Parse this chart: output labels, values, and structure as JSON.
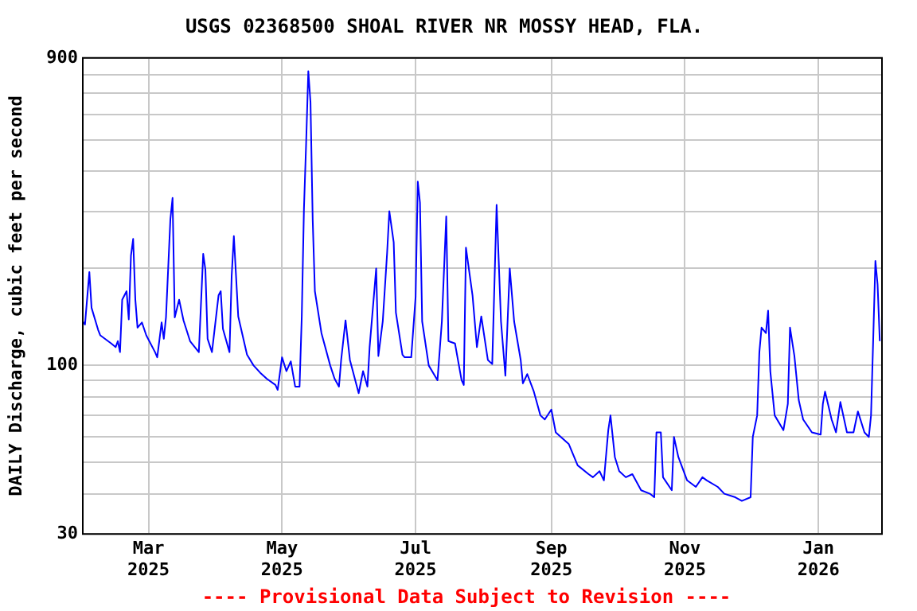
{
  "chart_data": {
    "type": "line",
    "title": "USGS 02368500 SHOAL RIVER NR MOSSY HEAD, FLA.",
    "ylabel": "DAILY Discharge, cubic feet per second",
    "annotations": [
      "---- Provisional Data Subject to Revision ----"
    ],
    "log": true,
    "grid": true,
    "legend": false,
    "marker": "none",
    "line_style": "solid",
    "xlim": [
      "2025-01-30",
      "2026-01-30"
    ],
    "xticks": [
      {
        "value": "2025-03-01",
        "label": "Mar 2025"
      },
      {
        "value": "2025-05-01",
        "label": "May 2025"
      },
      {
        "value": "2025-07-01",
        "label": "Jul 2025"
      },
      {
        "value": "2025-09-01",
        "label": "Sep 2025"
      },
      {
        "value": "2025-11-01",
        "label": "Nov 2025"
      },
      {
        "value": "2026-01-01",
        "label": "Jan 2026"
      }
    ],
    "ylim": [
      30,
      900
    ],
    "yticks": [
      30,
      {
        "value": 40,
        "label": null
      },
      {
        "value": 50,
        "label": null
      },
      {
        "value": 60,
        "label": null
      },
      {
        "value": 70,
        "label": null
      },
      {
        "value": 80,
        "label": null
      },
      {
        "value": 90,
        "label": null
      },
      100,
      {
        "value": 200,
        "label": null
      },
      {
        "value": 300,
        "label": null
      },
      {
        "value": 400,
        "label": null
      },
      {
        "value": 500,
        "label": null
      },
      {
        "value": 600,
        "label": null
      },
      {
        "value": 700,
        "label": null
      },
      {
        "value": 800,
        "label": null
      },
      900
    ],
    "x": [
      "2025-01-30",
      "2025-01-31",
      "2025-02-02",
      "2025-02-03",
      "2025-02-06",
      "2025-02-07",
      "2025-02-12",
      "2025-02-14",
      "2025-02-15",
      "2025-02-16",
      "2025-02-17",
      "2025-02-19",
      "2025-02-20",
      "2025-02-21",
      "2025-02-22",
      "2025-02-23",
      "2025-02-24",
      "2025-02-26",
      "2025-02-28",
      "2025-03-04",
      "2025-03-05",
      "2025-03-07",
      "2025-03-08",
      "2025-03-09",
      "2025-03-11",
      "2025-03-12",
      "2025-03-13",
      "2025-03-15",
      "2025-03-17",
      "2025-03-20",
      "2025-03-24",
      "2025-03-26",
      "2025-03-27",
      "2025-03-28",
      "2025-03-30",
      "2025-04-02",
      "2025-04-03",
      "2025-04-04",
      "2025-04-07",
      "2025-04-08",
      "2025-04-09",
      "2025-04-11",
      "2025-04-15",
      "2025-04-18",
      "2025-04-21",
      "2025-04-24",
      "2025-04-28",
      "2025-04-29",
      "2025-05-01",
      "2025-05-03",
      "2025-05-05",
      "2025-05-07",
      "2025-05-09",
      "2025-05-10",
      "2025-05-11",
      "2025-05-12",
      "2025-05-13",
      "2025-05-14",
      "2025-05-15",
      "2025-05-16",
      "2025-05-19",
      "2025-05-23",
      "2025-05-25",
      "2025-05-27",
      "2025-05-28",
      "2025-05-30",
      "2025-06-01",
      "2025-06-05",
      "2025-06-07",
      "2025-06-09",
      "2025-06-10",
      "2025-06-13",
      "2025-06-14",
      "2025-06-16",
      "2025-06-18",
      "2025-06-19",
      "2025-06-21",
      "2025-06-22",
      "2025-06-25",
      "2025-06-26",
      "2025-06-29",
      "2025-07-01",
      "2025-07-02",
      "2025-07-03",
      "2025-07-04",
      "2025-07-07",
      "2025-07-11",
      "2025-07-13",
      "2025-07-15",
      "2025-07-16",
      "2025-07-19",
      "2025-07-22",
      "2025-07-23",
      "2025-07-24",
      "2025-07-27",
      "2025-07-29",
      "2025-07-31",
      "2025-08-03",
      "2025-08-05",
      "2025-08-07",
      "2025-08-09",
      "2025-08-11",
      "2025-08-13",
      "2025-08-15",
      "2025-08-18",
      "2025-08-19",
      "2025-08-21",
      "2025-08-24",
      "2025-08-27",
      "2025-08-29",
      "2025-09-01",
      "2025-09-03",
      "2025-09-09",
      "2025-09-13",
      "2025-09-18",
      "2025-09-20",
      "2025-09-23",
      "2025-09-25",
      "2025-09-27",
      "2025-09-28",
      "2025-09-30",
      "2025-10-02",
      "2025-10-05",
      "2025-10-08",
      "2025-10-12",
      "2025-10-16",
      "2025-10-18",
      "2025-10-19",
      "2025-10-21",
      "2025-10-22",
      "2025-10-26",
      "2025-10-27",
      "2025-10-29",
      "2025-11-02",
      "2025-11-06",
      "2025-11-09",
      "2025-11-11",
      "2025-11-16",
      "2025-11-19",
      "2025-11-24",
      "2025-11-27",
      "2025-12-01",
      "2025-12-02",
      "2025-12-04",
      "2025-12-05",
      "2025-12-06",
      "2025-12-08",
      "2025-12-09",
      "2025-12-10",
      "2025-12-12",
      "2025-12-16",
      "2025-12-18",
      "2025-12-19",
      "2025-12-21",
      "2025-12-23",
      "2025-12-25",
      "2025-12-29",
      "2026-01-02",
      "2026-01-03",
      "2026-01-04",
      "2026-01-07",
      "2026-01-09",
      "2026-01-11",
      "2026-01-14",
      "2026-01-17",
      "2026-01-19",
      "2026-01-22",
      "2026-01-24",
      "2026-01-25",
      "2026-01-26",
      "2026-01-27",
      "2026-01-28",
      "2026-01-29"
    ],
    "series": [
      {
        "color": "#0000ff",
        "values": [
          137,
          134,
          195,
          151,
          129,
          124,
          117,
          114,
          119,
          110,
          160,
          170,
          139,
          219,
          247,
          160,
          131,
          136,
          124,
          110,
          106,
          136,
          121,
          141,
          284,
          331,
          141,
          160,
          138,
          119,
          110,
          222,
          198,
          121,
          110,
          165,
          170,
          130,
          110,
          190,
          252,
          142,
          108,
          100,
          95,
          91,
          87,
          84,
          106,
          96,
          103,
          86,
          86,
          141,
          305,
          488,
          819,
          655,
          284,
          170,
          126,
          100,
          91,
          86,
          104,
          138,
          104,
          82,
          96,
          86,
          114,
          200,
          107,
          137,
          224,
          301,
          241,
          146,
          108,
          106,
          106,
          163,
          372,
          320,
          137,
          100,
          90,
          137,
          290,
          119,
          117,
          90,
          87,
          232,
          165,
          114,
          142,
          104,
          101,
          315,
          137,
          93,
          200,
          137,
          104,
          88,
          94,
          83,
          70,
          68,
          73,
          62,
          57,
          49,
          46,
          45,
          47,
          44,
          63,
          70,
          52,
          47,
          45,
          46,
          41,
          40,
          39,
          62,
          62,
          45,
          41,
          60,
          52,
          44,
          42,
          45,
          44,
          42,
          40,
          39,
          38,
          39,
          60,
          70,
          110,
          131,
          126,
          148,
          96,
          70,
          63,
          76,
          131,
          107,
          78,
          68,
          62,
          61,
          76,
          83,
          68,
          62,
          77,
          62,
          62,
          72,
          62,
          60,
          70,
          121,
          211,
          178,
          119
        ]
      }
    ]
  }
}
